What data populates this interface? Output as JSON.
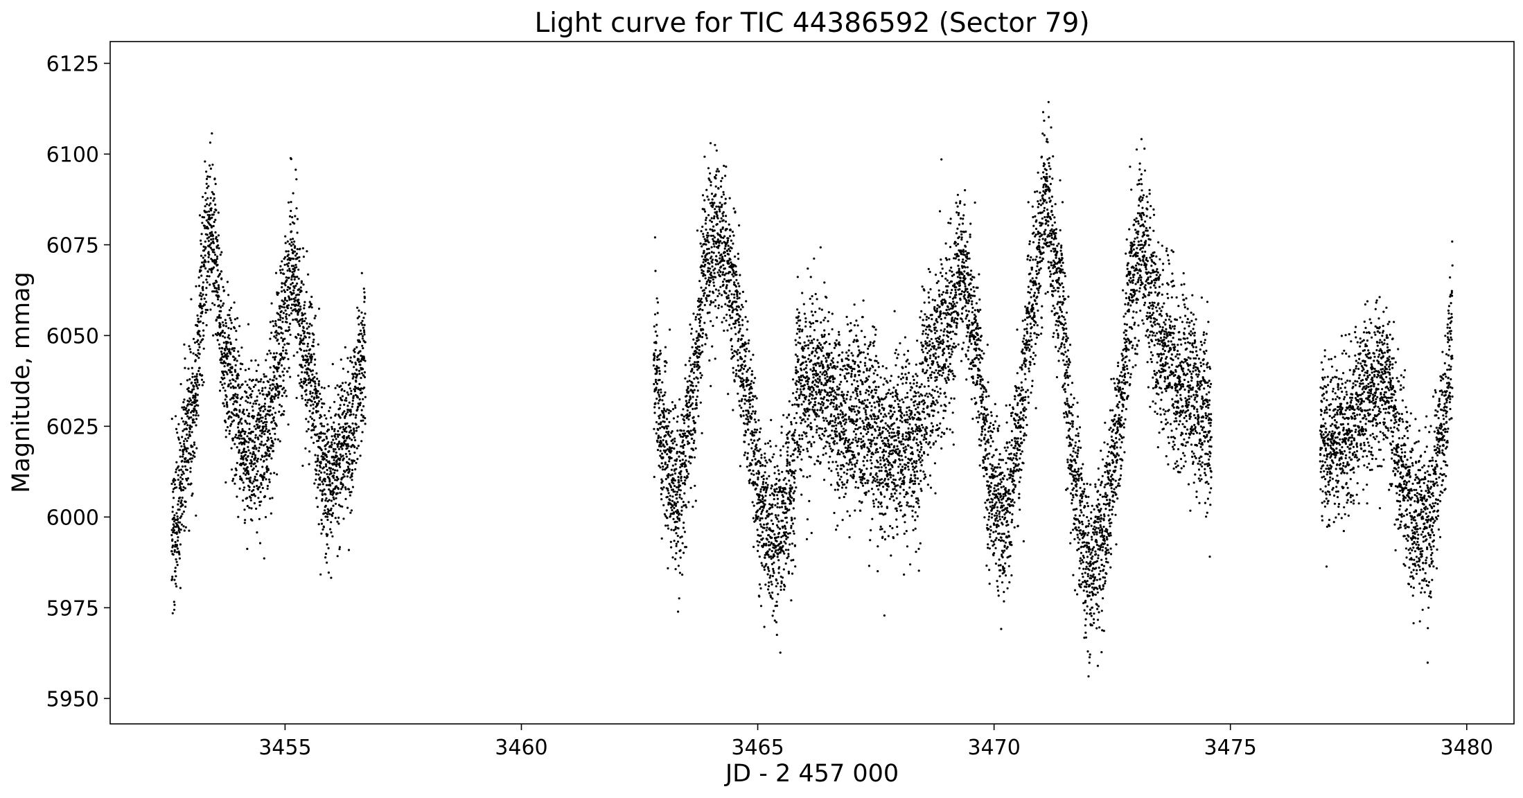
{
  "chart_data": {
    "type": "scatter",
    "title": "Light curve for TIC 44386592 (Sector 79)",
    "xlabel": "JD - 2 457 000",
    "ylabel": "Magnitude, mmag",
    "xlim": [
      3451.3,
      3481.0
    ],
    "ylim": [
      5943,
      6131
    ],
    "xticks": [
      3455,
      3460,
      3465,
      3470,
      3475,
      3480
    ],
    "xtick_labels": [
      "3455",
      "3460",
      "3465",
      "3470",
      "3475",
      "3480"
    ],
    "yticks": [
      5950,
      5975,
      6000,
      6025,
      6050,
      6075,
      6100,
      6125
    ],
    "ytick_labels": [
      "5950",
      "5975",
      "6000",
      "6025",
      "6050",
      "6075",
      "6100",
      "6125"
    ],
    "grid": false,
    "marker_color": "#000000",
    "series_segments": [
      {
        "x_range": [
          3452.6,
          3456.7
        ],
        "curve": [
          [
            3452.6,
            5995
          ],
          [
            3453.0,
            6025
          ],
          [
            3453.4,
            6082
          ],
          [
            3453.8,
            6040
          ],
          [
            3454.2,
            6018
          ],
          [
            3454.6,
            6022
          ],
          [
            3454.9,
            6048
          ],
          [
            3455.15,
            6068
          ],
          [
            3455.5,
            6040
          ],
          [
            3455.9,
            6010
          ],
          [
            3456.3,
            6022
          ],
          [
            3456.7,
            6045
          ]
        ],
        "noise": 11
      },
      {
        "x_range": [
          3462.8,
          3465.8
        ],
        "curve": [
          [
            3462.8,
            6040
          ],
          [
            3463.0,
            6020
          ],
          [
            3463.3,
            6005
          ],
          [
            3463.6,
            6030
          ],
          [
            3463.9,
            6070
          ],
          [
            3464.2,
            6078
          ],
          [
            3464.5,
            6060
          ],
          [
            3464.8,
            6030
          ],
          [
            3465.1,
            6000
          ],
          [
            3465.4,
            5995
          ],
          [
            3465.8,
            6010
          ]
        ],
        "noise": 11
      },
      {
        "x_range": [
          3465.8,
          3469.0
        ],
        "curve": [
          [
            3465.8,
            6035
          ],
          [
            3466.3,
            6038
          ],
          [
            3466.8,
            6028
          ],
          [
            3467.3,
            6025
          ],
          [
            3467.8,
            6018
          ],
          [
            3468.3,
            6022
          ],
          [
            3468.7,
            6040
          ],
          [
            3469.0,
            6050
          ]
        ],
        "noise": 13
      },
      {
        "x_range": [
          3469.0,
          3473.4
        ],
        "curve": [
          [
            3469.0,
            6050
          ],
          [
            3469.3,
            6068
          ],
          [
            3469.6,
            6050
          ],
          [
            3469.9,
            6010
          ],
          [
            3470.2,
            6000
          ],
          [
            3470.5,
            6020
          ],
          [
            3470.8,
            6060
          ],
          [
            3471.1,
            6088
          ],
          [
            3471.4,
            6060
          ],
          [
            3471.7,
            6010
          ],
          [
            3472.0,
            5985
          ],
          [
            3472.3,
            5995
          ],
          [
            3472.6,
            6020
          ],
          [
            3472.9,
            6060
          ],
          [
            3473.1,
            6078
          ],
          [
            3473.4,
            6055
          ]
        ],
        "noise": 11
      },
      {
        "x_range": [
          3473.4,
          3474.6
        ],
        "curve": [
          [
            3473.4,
            6048
          ],
          [
            3474.0,
            6038
          ],
          [
            3474.6,
            6025
          ]
        ],
        "noise": 13
      },
      {
        "x_range": [
          3476.9,
          3479.7
        ],
        "curve": [
          [
            3476.9,
            6020
          ],
          [
            3477.4,
            6022
          ],
          [
            3477.9,
            6035
          ],
          [
            3478.3,
            6038
          ],
          [
            3478.6,
            6015
          ],
          [
            3478.9,
            5998
          ],
          [
            3479.2,
            5998
          ],
          [
            3479.5,
            6025
          ],
          [
            3479.7,
            6050
          ]
        ],
        "noise": 11
      }
    ]
  }
}
